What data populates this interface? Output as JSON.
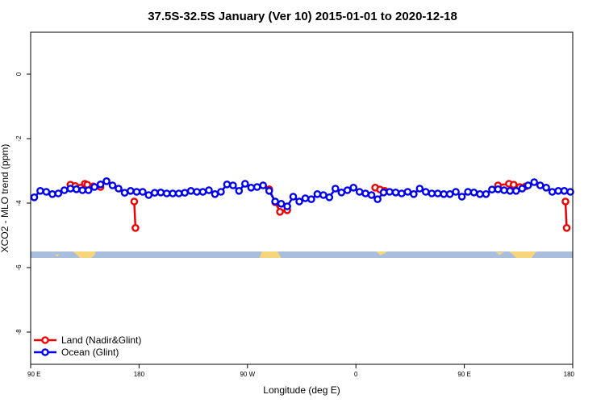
{
  "chart_data": {
    "type": "line",
    "title": "37.5S-32.5S January (Ver 10)   2015-01-01 to 2020-12-18",
    "xlabel": "Longitude (deg E)",
    "ylabel": "XCO2 - MLO trend (ppm)",
    "xlim": [
      90,
      540
    ],
    "ylim": [
      -9.0,
      1.3
    ],
    "xticks": [
      {
        "value": 90,
        "label": "90 E"
      },
      {
        "value": 180,
        "label": "180"
      },
      {
        "value": 270,
        "label": "90 W"
      },
      {
        "value": 360,
        "label": "0"
      },
      {
        "value": 450,
        "label": "90 E"
      },
      {
        "value": 540,
        "label": "180"
      }
    ],
    "yticks": [
      0,
      -2,
      -4,
      -6,
      -8
    ],
    "grid": false,
    "legend_position": "bottom-left",
    "land_band": {
      "y_range": [
        -5.7,
        -5.5
      ],
      "ocean_color": "#a8bedc",
      "land_color": "#f7d57a"
    },
    "series": [
      {
        "name": "Land (Nadir&Glint)",
        "color": "#ee0000",
        "segments": [
          {
            "x": [
              123,
              127,
              135,
              137,
              142,
              148
            ],
            "y": [
              -3.43,
              -3.47,
              -3.4,
              -3.43,
              -3.48,
              -3.5
            ]
          },
          {
            "x": [
              176,
              177
            ],
            "y": [
              -3.95,
              -4.77
            ]
          },
          {
            "x": [
              288,
              293,
              297,
              303
            ],
            "y": [
              -3.57,
              -3.97,
              -4.27,
              -4.22
            ]
          },
          {
            "x": [
              376,
              380,
              384
            ],
            "y": [
              -3.52,
              -3.58,
              -3.62
            ]
          },
          {
            "x": [
              478,
              487,
              491,
              496,
              501
            ],
            "y": [
              -3.45,
              -3.4,
              -3.43,
              -3.5,
              -3.48
            ]
          },
          {
            "x": [
              534,
              535
            ],
            "y": [
              -3.95,
              -4.77
            ]
          }
        ]
      },
      {
        "name": "Ocean (Glint)",
        "color": "#0000ee",
        "x": [
          93,
          98,
          103,
          108,
          113,
          118,
          123,
          128,
          133,
          138,
          143,
          148,
          153,
          158,
          163,
          168,
          173,
          178,
          183,
          188,
          193,
          198,
          203,
          208,
          213,
          218,
          223,
          228,
          233,
          238,
          243,
          248,
          253,
          258,
          263,
          268,
          273,
          278,
          283,
          288,
          293,
          298,
          303,
          308,
          313,
          318,
          323,
          328,
          333,
          338,
          343,
          348,
          353,
          358,
          363,
          368,
          373,
          378,
          383,
          388,
          393,
          398,
          403,
          408,
          413,
          418,
          423,
          428,
          433,
          438,
          443,
          448,
          453,
          458,
          463,
          468,
          473,
          478,
          483,
          488,
          493,
          498,
          503,
          508,
          513,
          518,
          523,
          528,
          533,
          538
        ],
        "y": [
          -3.82,
          -3.62,
          -3.65,
          -3.72,
          -3.7,
          -3.6,
          -3.55,
          -3.57,
          -3.6,
          -3.6,
          -3.5,
          -3.42,
          -3.32,
          -3.45,
          -3.55,
          -3.68,
          -3.62,
          -3.65,
          -3.65,
          -3.75,
          -3.68,
          -3.67,
          -3.7,
          -3.7,
          -3.7,
          -3.68,
          -3.62,
          -3.65,
          -3.65,
          -3.6,
          -3.72,
          -3.65,
          -3.42,
          -3.45,
          -3.62,
          -3.4,
          -3.52,
          -3.5,
          -3.45,
          -3.62,
          -3.95,
          -4.02,
          -4.1,
          -3.8,
          -3.95,
          -3.85,
          -3.88,
          -3.72,
          -3.75,
          -3.82,
          -3.55,
          -3.67,
          -3.6,
          -3.52,
          -3.65,
          -3.7,
          -3.75,
          -3.88,
          -3.67,
          -3.65,
          -3.67,
          -3.7,
          -3.65,
          -3.72,
          -3.55,
          -3.65,
          -3.7,
          -3.7,
          -3.72,
          -3.72,
          -3.65,
          -3.8,
          -3.65,
          -3.67,
          -3.72,
          -3.72,
          -3.58,
          -3.57,
          -3.6,
          -3.62,
          -3.62,
          -3.55,
          -3.45,
          -3.35,
          -3.45,
          -3.52,
          -3.65,
          -3.62,
          -3.62,
          -3.65
        ]
      }
    ]
  }
}
